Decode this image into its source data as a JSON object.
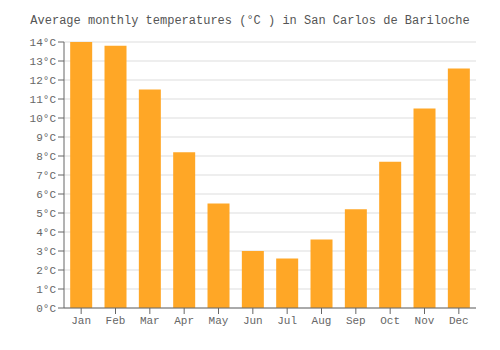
{
  "chart_data": {
    "type": "bar",
    "title": "Average monthly temperatures (°C ) in San Carlos de Bariloche",
    "categories": [
      "Jan",
      "Feb",
      "Mar",
      "Apr",
      "May",
      "Jun",
      "Jul",
      "Aug",
      "Sep",
      "Oct",
      "Nov",
      "Dec"
    ],
    "values": [
      14.0,
      13.8,
      11.5,
      8.2,
      5.5,
      3.0,
      2.6,
      3.6,
      5.2,
      7.7,
      10.5,
      12.6
    ],
    "color": "#FFA726",
    "ylim": [
      0,
      14
    ],
    "yticks": [
      {
        "value": 0,
        "label": "0°C"
      },
      {
        "value": 1,
        "label": "1°C"
      },
      {
        "value": 2,
        "label": "2°C"
      },
      {
        "value": 3,
        "label": "3°C"
      },
      {
        "value": 4,
        "label": "4°C"
      },
      {
        "value": 5,
        "label": "5°C"
      },
      {
        "value": 6,
        "label": "6°C"
      },
      {
        "value": 7,
        "label": "7°C"
      },
      {
        "value": 8,
        "label": "8°C"
      },
      {
        "value": 9,
        "label": "9°C"
      },
      {
        "value": 10,
        "label": "10°C"
      },
      {
        "value": 11,
        "label": "11°C"
      },
      {
        "value": 12,
        "label": "12°C"
      },
      {
        "value": 13,
        "label": "13°C"
      },
      {
        "value": 14,
        "label": "14°C"
      }
    ],
    "grid": true
  }
}
